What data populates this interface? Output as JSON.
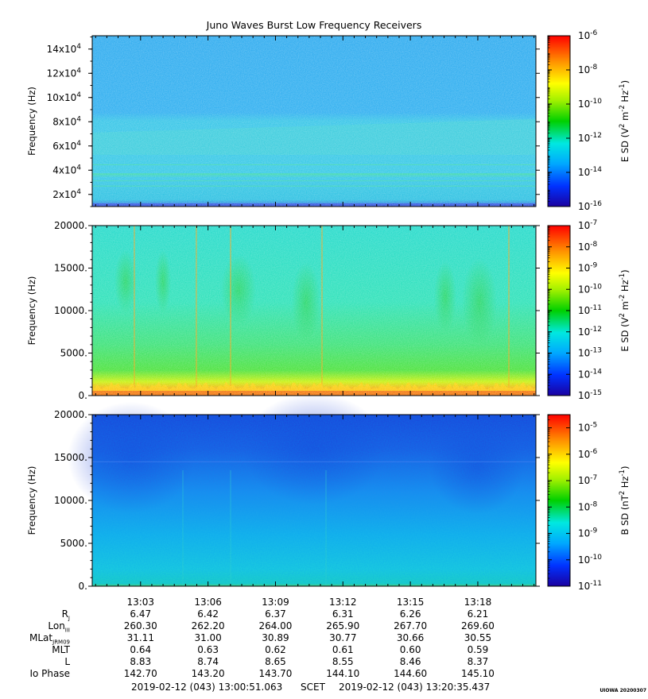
{
  "title": "Juno Waves Burst Low Frequency Receivers",
  "chart_data": [
    {
      "type": "heatmap",
      "panel": "top",
      "ylabel": "Frequency (Hz)",
      "ylim": [
        10000,
        151000
      ],
      "yticks": [
        {
          "value": 20000,
          "mant": "2x10",
          "exp": "4"
        },
        {
          "value": 40000,
          "mant": "4x10",
          "exp": "4"
        },
        {
          "value": 60000,
          "mant": "6x10",
          "exp": "4"
        },
        {
          "value": 80000,
          "mant": "8x10",
          "exp": "4"
        },
        {
          "value": 100000,
          "mant": "10x10",
          "exp": "4"
        },
        {
          "value": 120000,
          "mant": "12x10",
          "exp": "4"
        },
        {
          "value": 140000,
          "mant": "14x10",
          "exp": "4"
        }
      ],
      "colorbar": {
        "label": "E SD (V2 m-2 Hz-1)",
        "label_parts": [
          "E SD (V",
          "2",
          " m",
          "-2",
          " Hz",
          "-1",
          ")"
        ],
        "range": [
          -16,
          -6
        ],
        "scale": "log",
        "ticks": [
          {
            "value": -6,
            "mant": "10",
            "exp": "-6"
          },
          {
            "value": -8,
            "mant": "10",
            "exp": "-8"
          },
          {
            "value": -10,
            "mant": "10",
            "exp": "-10"
          },
          {
            "value": -12,
            "mant": "10",
            "exp": "-12"
          },
          {
            "value": -14,
            "mant": "10",
            "exp": "-14"
          },
          {
            "value": -16,
            "mant": "10",
            "exp": "-16"
          }
        ]
      }
    },
    {
      "type": "heatmap",
      "panel": "middle",
      "ylabel": "Frequency (Hz)",
      "ylim": [
        0,
        20000
      ],
      "yticks": [
        {
          "value": 0,
          "label": "0."
        },
        {
          "value": 5000,
          "label": "5000."
        },
        {
          "value": 10000,
          "label": "10000."
        },
        {
          "value": 15000,
          "label": "15000."
        },
        {
          "value": 20000,
          "label": "20000."
        }
      ],
      "colorbar": {
        "label": "E SD (V2 m-2 Hz-1)",
        "label_parts": [
          "E SD (V",
          "2",
          " m",
          "-2",
          " Hz",
          "-1",
          ")"
        ],
        "range": [
          -15,
          -7
        ],
        "scale": "log",
        "ticks": [
          {
            "value": -7,
            "mant": "10",
            "exp": "-7"
          },
          {
            "value": -8,
            "mant": "10",
            "exp": "-8"
          },
          {
            "value": -9,
            "mant": "10",
            "exp": "-9"
          },
          {
            "value": -10,
            "mant": "10",
            "exp": "-10"
          },
          {
            "value": -11,
            "mant": "10",
            "exp": "-11"
          },
          {
            "value": -12,
            "mant": "10",
            "exp": "-12"
          },
          {
            "value": -13,
            "mant": "10",
            "exp": "-13"
          },
          {
            "value": -14,
            "mant": "10",
            "exp": "-14"
          },
          {
            "value": -15,
            "mant": "10",
            "exp": "-15"
          }
        ]
      }
    },
    {
      "type": "heatmap",
      "panel": "bottom",
      "ylabel": "Frequency (Hz)",
      "ylim": [
        0,
        20000
      ],
      "yticks": [
        {
          "value": 0,
          "label": "0."
        },
        {
          "value": 5000,
          "label": "5000."
        },
        {
          "value": 10000,
          "label": "10000."
        },
        {
          "value": 15000,
          "label": "15000."
        },
        {
          "value": 20000,
          "label": "20000."
        }
      ],
      "colorbar": {
        "label": "B SD (nT2 Hz-1)",
        "label_parts": [
          "B SD (nT",
          "2",
          " Hz",
          "-1",
          ")"
        ],
        "range": [
          -11,
          -4.5
        ],
        "scale": "log",
        "ticks": [
          {
            "value": -5,
            "mant": "10",
            "exp": "-5"
          },
          {
            "value": -6,
            "mant": "10",
            "exp": "-6"
          },
          {
            "value": -7,
            "mant": "10",
            "exp": "-7"
          },
          {
            "value": -8,
            "mant": "10",
            "exp": "-8"
          },
          {
            "value": -9,
            "mant": "10",
            "exp": "-9"
          },
          {
            "value": -10,
            "mant": "10",
            "exp": "-10"
          },
          {
            "value": -11,
            "mant": "10",
            "exp": "-11"
          }
        ]
      }
    }
  ],
  "time_axis": {
    "start": "13:00:51",
    "end": "13:20:35",
    "tick_labels": [
      "13:03",
      "13:06",
      "13:09",
      "13:12",
      "13:15",
      "13:18"
    ]
  },
  "ephemeris": {
    "labels": [
      {
        "main": "R",
        "sub": "J"
      },
      {
        "main": "Lon",
        "sub": "III"
      },
      {
        "main": "MLat",
        "sub": "JRM09"
      },
      {
        "main": "MLT",
        "sub": ""
      },
      {
        "main": "L",
        "sub": ""
      },
      {
        "main": "Io Phase",
        "sub": ""
      }
    ],
    "rows": [
      [
        "6.47",
        "6.42",
        "6.37",
        "6.31",
        "6.26",
        "6.21"
      ],
      [
        "260.30",
        "262.20",
        "264.00",
        "265.90",
        "267.70",
        "269.60"
      ],
      [
        "31.11",
        "31.00",
        "30.89",
        "30.77",
        "30.66",
        "30.55"
      ],
      [
        "0.64",
        "0.63",
        "0.62",
        "0.61",
        "0.60",
        "0.59"
      ],
      [
        "8.83",
        "8.74",
        "8.65",
        "8.55",
        "8.46",
        "8.37"
      ],
      [
        "142.70",
        "143.20",
        "143.70",
        "144.10",
        "144.60",
        "145.10"
      ]
    ]
  },
  "footer": {
    "start": "2019-02-12 (043) 13:00:51.063",
    "middle": "SCET",
    "end": "2019-02-12 (043) 13:20:35.437"
  },
  "stamp": "UIOWA 20200307"
}
